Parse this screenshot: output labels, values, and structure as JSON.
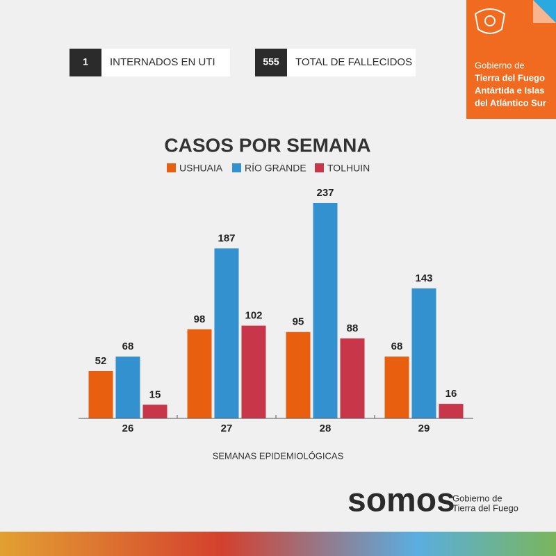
{
  "header": {
    "lines": [
      "Gobierno de",
      "Tierra del Fuego",
      "Antártida e Islas",
      "del Atlántico Sur"
    ]
  },
  "stats": [
    {
      "value": 1,
      "label": "INTERNADOS EN UTI"
    },
    {
      "value": 555,
      "label": "TOTAL DE FALLECIDOS"
    }
  ],
  "chart_data": {
    "type": "bar",
    "title": "CASOS POR SEMANA",
    "x_label": "SEMANAS EPIDEMIOLÓGICAS",
    "categories": [
      "26",
      "27",
      "28",
      "29"
    ],
    "series": [
      {
        "name": "USHUAIA",
        "color": "#e8600f",
        "values": [
          52,
          98,
          95,
          68
        ]
      },
      {
        "name": "RÍO GRANDE",
        "color": "#3391cf",
        "values": [
          68,
          187,
          237,
          143
        ]
      },
      {
        "name": "TOLHUIN",
        "color": "#c8364a",
        "values": [
          15,
          102,
          88,
          16
        ]
      }
    ]
  },
  "footer": {
    "brand": "somos",
    "lines": [
      "Gobierno de",
      "Tierra del Fuego"
    ]
  }
}
